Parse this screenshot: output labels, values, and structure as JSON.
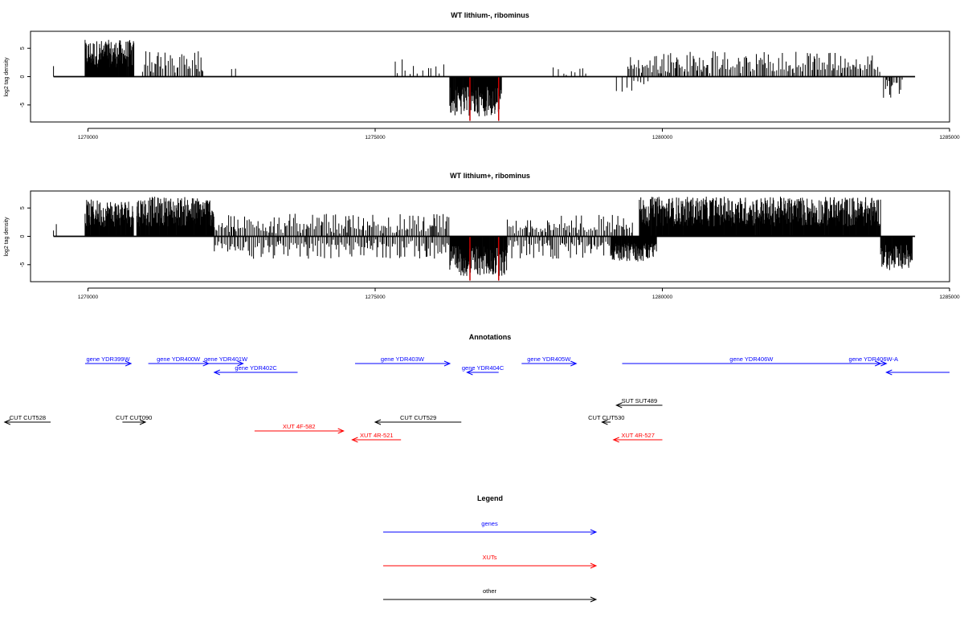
{
  "colors": {
    "genes": "#0000ff",
    "xuts": "#ff0000",
    "other": "#000000",
    "highlight": "#cc0000"
  },
  "chart_data": [
    {
      "type": "bar",
      "title": "WT lithium-, ribominus",
      "ylabel": "log2 tag density",
      "xlim": [
        1269000,
        1285000
      ],
      "ylim": [
        -8,
        8
      ],
      "yticks": [
        -5,
        0,
        5
      ],
      "xticks": [
        1270000,
        1275000,
        1280000,
        1285000
      ],
      "xrange_data": [
        1269400,
        1284400
      ],
      "grid": false,
      "regions": [
        {
          "start": 1269400,
          "end": 1269450,
          "strand": "+",
          "density": "sparse",
          "max": 5
        },
        {
          "start": 1269950,
          "end": 1270800,
          "strand": "+",
          "density": "dense",
          "max": 6.5
        },
        {
          "start": 1270950,
          "end": 1272000,
          "strand": "+",
          "density": "medium",
          "max": 5
        },
        {
          "start": 1272500,
          "end": 1272650,
          "strand": "+",
          "density": "sparse",
          "max": 3
        },
        {
          "start": 1275350,
          "end": 1276200,
          "strand": "+",
          "density": "sparse",
          "max": 3.5
        },
        {
          "start": 1276300,
          "end": 1277200,
          "strand": "-",
          "density": "dense",
          "max": 7
        },
        {
          "start": 1278100,
          "end": 1278700,
          "strand": "+",
          "density": "sparse",
          "max": 2
        },
        {
          "start": 1279200,
          "end": 1279800,
          "strand": "-",
          "density": "sparse",
          "max": 3
        },
        {
          "start": 1279400,
          "end": 1283800,
          "strand": "+",
          "density": "medium",
          "max": 4.5
        },
        {
          "start": 1283850,
          "end": 1284200,
          "strand": "-",
          "density": "medium",
          "max": 4
        }
      ],
      "highlights": [
        {
          "x": 1276650,
          "value": -7.8
        },
        {
          "x": 1277150,
          "value": -7.8
        }
      ]
    },
    {
      "type": "bar",
      "title": "WT lithium+, ribominus",
      "ylabel": "log2 tag density",
      "xlim": [
        1269000,
        1285000
      ],
      "ylim": [
        -8,
        8
      ],
      "yticks": [
        -5,
        0,
        5
      ],
      "xticks": [
        1270000,
        1275000,
        1280000,
        1285000
      ],
      "xrange_data": [
        1269400,
        1284400
      ],
      "grid": false,
      "regions": [
        {
          "start": 1269400,
          "end": 1269450,
          "strand": "+",
          "density": "sparse",
          "max": 4
        },
        {
          "start": 1269950,
          "end": 1270800,
          "strand": "+",
          "density": "dense",
          "max": 6.5
        },
        {
          "start": 1270850,
          "end": 1272200,
          "strand": "+",
          "density": "dense",
          "max": 7
        },
        {
          "start": 1272200,
          "end": 1276300,
          "strand": "+",
          "density": "medium",
          "max": 4
        },
        {
          "start": 1272200,
          "end": 1276300,
          "strand": "-",
          "density": "medium",
          "max": 4
        },
        {
          "start": 1276300,
          "end": 1277300,
          "strand": "-",
          "density": "dense",
          "max": 7
        },
        {
          "start": 1277300,
          "end": 1279500,
          "strand": "+",
          "density": "medium",
          "max": 4
        },
        {
          "start": 1277300,
          "end": 1279500,
          "strand": "-",
          "density": "medium",
          "max": 4
        },
        {
          "start": 1279100,
          "end": 1279900,
          "strand": "-",
          "density": "dense",
          "max": 4.5
        },
        {
          "start": 1279600,
          "end": 1283800,
          "strand": "+",
          "density": "dense",
          "max": 7
        },
        {
          "start": 1283800,
          "end": 1284350,
          "strand": "-",
          "density": "dense",
          "max": 6
        }
      ],
      "highlights": [
        {
          "x": 1276650,
          "value": -7.8
        },
        {
          "x": 1277150,
          "value": -7.8
        }
      ]
    }
  ],
  "annotations": {
    "title": "Annotations",
    "features": [
      {
        "label": "gene YDR399W",
        "type": "genes",
        "strand": "+",
        "start": 1269950,
        "end": 1270750,
        "row": 1
      },
      {
        "label": "gene YDR400W",
        "type": "genes",
        "strand": "+",
        "start": 1271050,
        "end": 1272100,
        "row": 1
      },
      {
        "label": "gene YDR401W",
        "type": "genes",
        "strand": "+",
        "start": 1272100,
        "end": 1272700,
        "row": 1
      },
      {
        "label": "gene YDR402C",
        "type": "genes",
        "strand": "-",
        "start": 1272200,
        "end": 1273650,
        "row": 2
      },
      {
        "label": "gene YDR403W",
        "type": "genes",
        "strand": "+",
        "start": 1274650,
        "end": 1276300,
        "row": 1
      },
      {
        "label": "gene YDR404C",
        "type": "genes",
        "strand": "-",
        "start": 1276600,
        "end": 1277150,
        "row": 2
      },
      {
        "label": "gene YDR405W",
        "type": "genes",
        "strand": "+",
        "start": 1277550,
        "end": 1278500,
        "row": 1
      },
      {
        "label": "gene YDR406W",
        "type": "genes",
        "strand": "+",
        "start": 1279300,
        "end": 1283800,
        "row": 1
      },
      {
        "label": "gene YDR406W-A",
        "type": "genes",
        "strand": "+",
        "start": 1283450,
        "end": 1283900,
        "row": 1
      },
      {
        "label": "",
        "type": "genes",
        "strand": "-",
        "start": 1283900,
        "end": 1285000,
        "row": 2
      },
      {
        "label": "SUT SUT489",
        "type": "other",
        "strand": "-",
        "start": 1279200,
        "end": 1280000,
        "row": 4
      },
      {
        "label": "CUT CUT528",
        "type": "other",
        "strand": "-",
        "start": 1268550,
        "end": 1269350,
        "row": 5
      },
      {
        "label": "CUT CUT090",
        "type": "other",
        "strand": "+",
        "start": 1270600,
        "end": 1271000,
        "row": 5
      },
      {
        "label": "CUT CUT529",
        "type": "other",
        "strand": "-",
        "start": 1275000,
        "end": 1276500,
        "row": 5
      },
      {
        "label": "CUT CUT530",
        "type": "other",
        "strand": "-",
        "start": 1278950,
        "end": 1279100,
        "row": 5
      },
      {
        "label": "XUT 4F-582",
        "type": "xuts",
        "strand": "+",
        "start": 1272900,
        "end": 1274450,
        "row": 6
      },
      {
        "label": "XUT 4R-521",
        "type": "xuts",
        "strand": "-",
        "start": 1274600,
        "end": 1275450,
        "row": 7
      },
      {
        "label": "XUT 4R-527",
        "type": "xuts",
        "strand": "-",
        "start": 1279150,
        "end": 1280000,
        "row": 7
      }
    ]
  },
  "legend": {
    "title": "Legend",
    "items": [
      {
        "label": "genes",
        "type": "genes"
      },
      {
        "label": "XUTs",
        "type": "xuts"
      },
      {
        "label": "other",
        "type": "other"
      }
    ]
  }
}
